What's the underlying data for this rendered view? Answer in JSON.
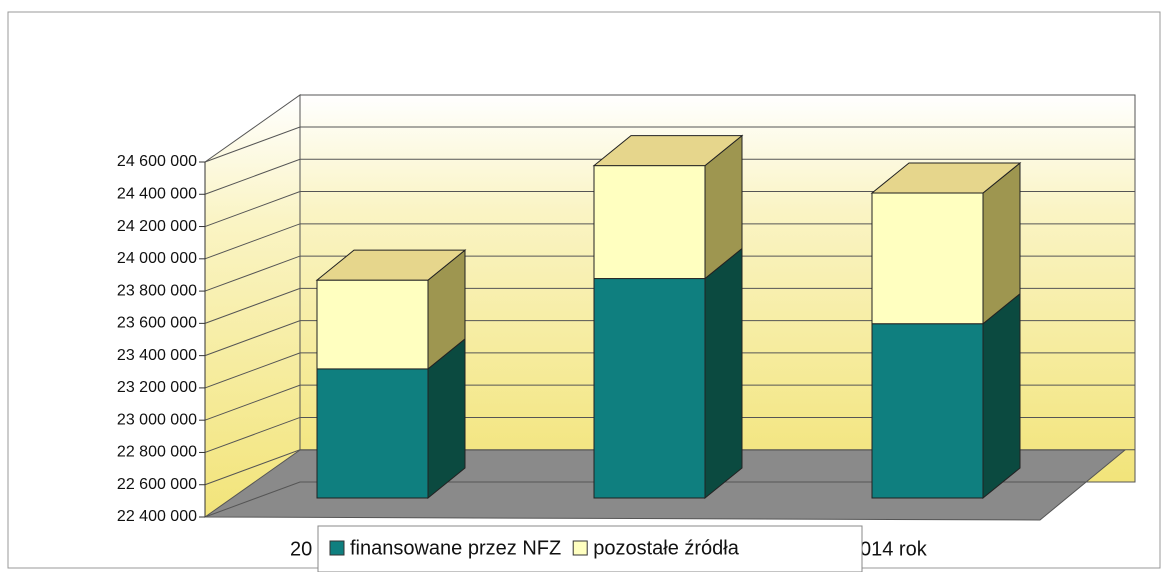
{
  "chart_data": {
    "type": "bar3d_stacked",
    "categories": [
      null,
      null,
      null
    ],
    "annotations": [
      "20",
      "014 rok"
    ],
    "series": [
      {
        "name": "finansowane przez NFZ",
        "color": "#0f7f7f",
        "values": [
          23200000,
          23760000,
          23480000
        ]
      },
      {
        "name": "pozostałe źródła",
        "color": "#ffffc0",
        "values": [
          550000,
          700000,
          810000
        ]
      }
    ],
    "ylim": [
      22400000,
      24600000
    ],
    "yticks": [
      {
        "value": 22400000,
        "label": "22 400 000"
      },
      {
        "value": 22600000,
        "label": "22 600 000"
      },
      {
        "value": 22800000,
        "label": "22 800 000"
      },
      {
        "value": 23000000,
        "label": "23 000 000"
      },
      {
        "value": 23200000,
        "label": "23 200 000"
      },
      {
        "value": 23400000,
        "label": "23 400 000"
      },
      {
        "value": 23600000,
        "label": "23 600 000"
      },
      {
        "value": 23800000,
        "label": "23 800 000"
      },
      {
        "value": 24000000,
        "label": "24 000 000"
      },
      {
        "value": 24200000,
        "label": "24 200 000"
      },
      {
        "value": 24400000,
        "label": "24 400 000"
      },
      {
        "value": 24600000,
        "label": "24 600 000"
      }
    ],
    "grid": true,
    "legend": "bottom"
  }
}
